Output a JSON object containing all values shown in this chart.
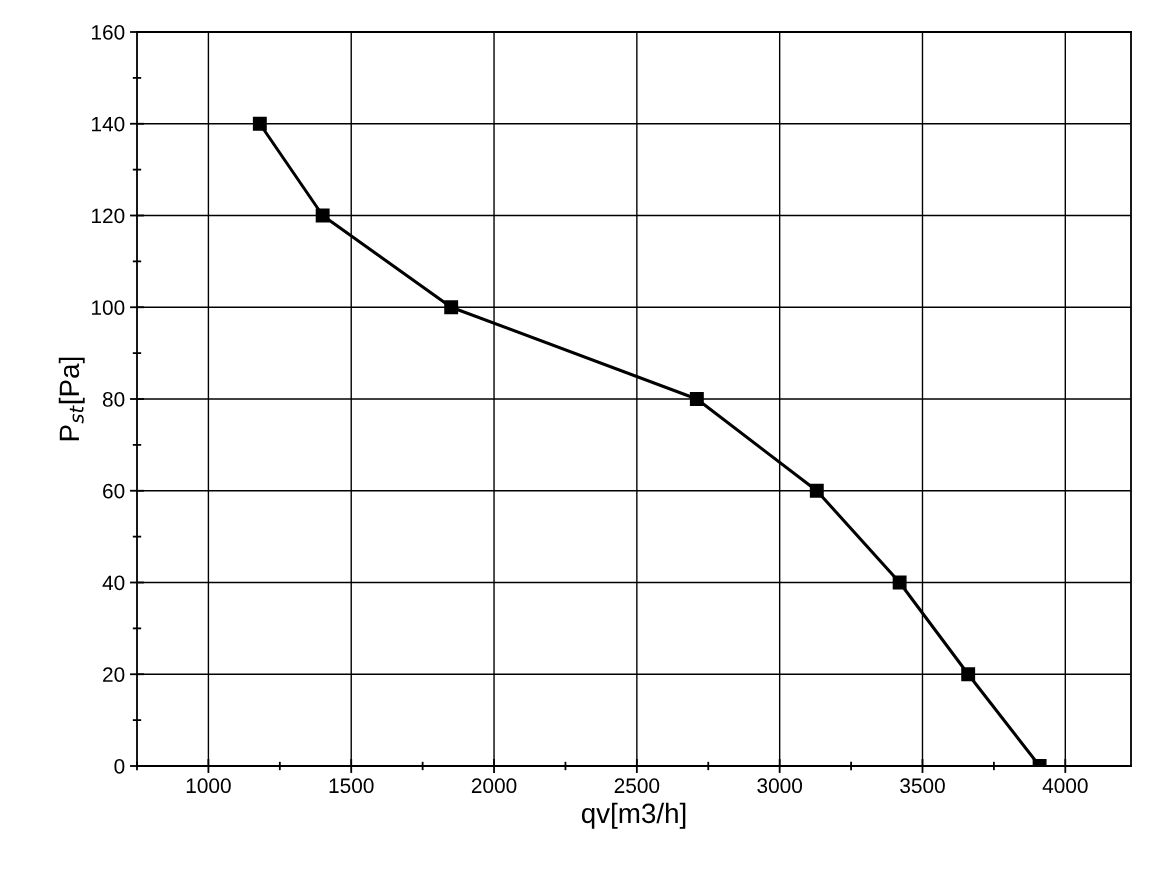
{
  "chart_data": {
    "type": "line",
    "xlabel": "qv[m3/h]",
    "ylabel": "P$_{st}$[Pa]",
    "x": [
      1180,
      1400,
      1850,
      2710,
      3130,
      3420,
      3660,
      3910
    ],
    "series": [
      {
        "color": "#000000",
        "values": [
          140,
          120,
          100,
          80,
          60,
          40,
          20,
          0
        ]
      }
    ],
    "xlim": [
      750,
      4230
    ],
    "xticks": [
      1000,
      1500,
      2000,
      2500,
      3000,
      3500,
      4000
    ],
    "ylim": [
      0,
      160
    ],
    "yticks": [
      0,
      20,
      40,
      60,
      80,
      100,
      120,
      140,
      160
    ],
    "grid": true,
    "marker": "square",
    "line_style": "solid"
  }
}
